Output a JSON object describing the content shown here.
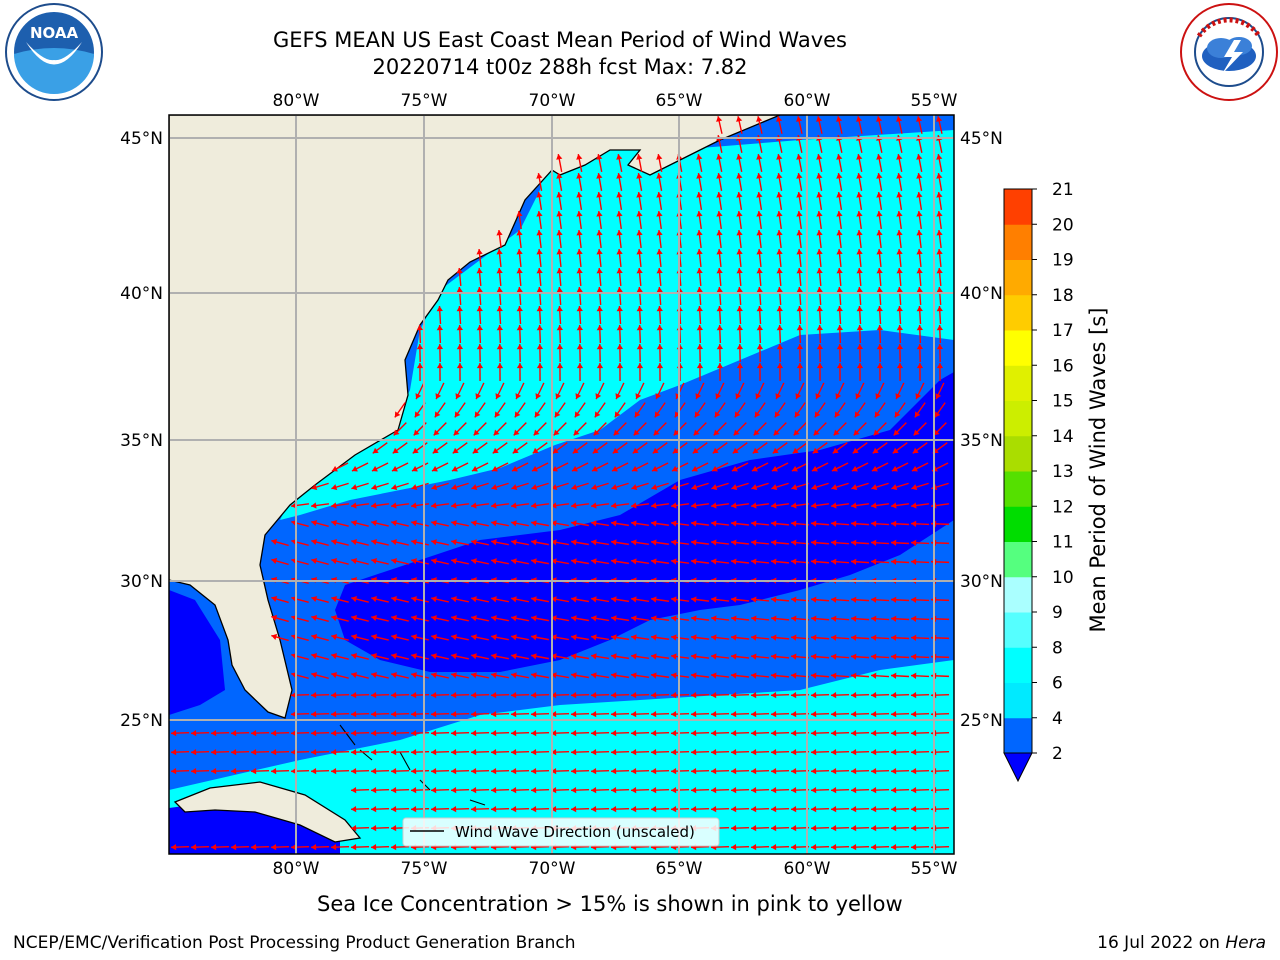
{
  "header": {
    "title_line1": "GEFS MEAN US East Coast Mean Period of Wind Waves",
    "title_line2": "20220714 t00z 288h fcst   Max: 7.82"
  },
  "logos": {
    "left": {
      "icon": "noaa-logo",
      "text": "NOAA"
    },
    "right": {
      "icon": "national-weather-service-logo",
      "text": "NATIONAL WEATHER SERVICE"
    }
  },
  "map": {
    "lon_labels": [
      "80°W",
      "75°W",
      "70°W",
      "65°W",
      "60°W",
      "55°W"
    ],
    "lat_labels": [
      "45°N",
      "40°N",
      "35°N",
      "30°N",
      "25°N"
    ],
    "legend_label": "Wind Wave Direction (unscaled)",
    "arrow_color": "#ff0000",
    "land_color": "#efecdc"
  },
  "colorbar": {
    "label": "Mean Period of Wind Waves [s]",
    "ticks": [
      "2",
      "4",
      "6",
      "8",
      "9",
      "10",
      "11",
      "12",
      "13",
      "14",
      "15",
      "16",
      "17",
      "18",
      "19",
      "20",
      "21"
    ],
    "colors": [
      "#0066ff",
      "#00eaff",
      "#00ffff",
      "#55ffff",
      "#aaffff",
      "#55ff7f",
      "#00dd00",
      "#55e000",
      "#aadd00",
      "#ccee00",
      "#e0f000",
      "#ffff00",
      "#ffcc00",
      "#ffaa00",
      "#ff7f00",
      "#ff4000",
      "#ff0000"
    ],
    "extend_color": "#0000ff"
  },
  "footer": {
    "note": "Sea Ice Concentration > 15% is shown in pink to yellow",
    "left": "NCEP/EMC/Verification Post Processing Product Generation Branch",
    "right_date": "16 Jul 2022 on ",
    "right_system": "Hera"
  }
}
